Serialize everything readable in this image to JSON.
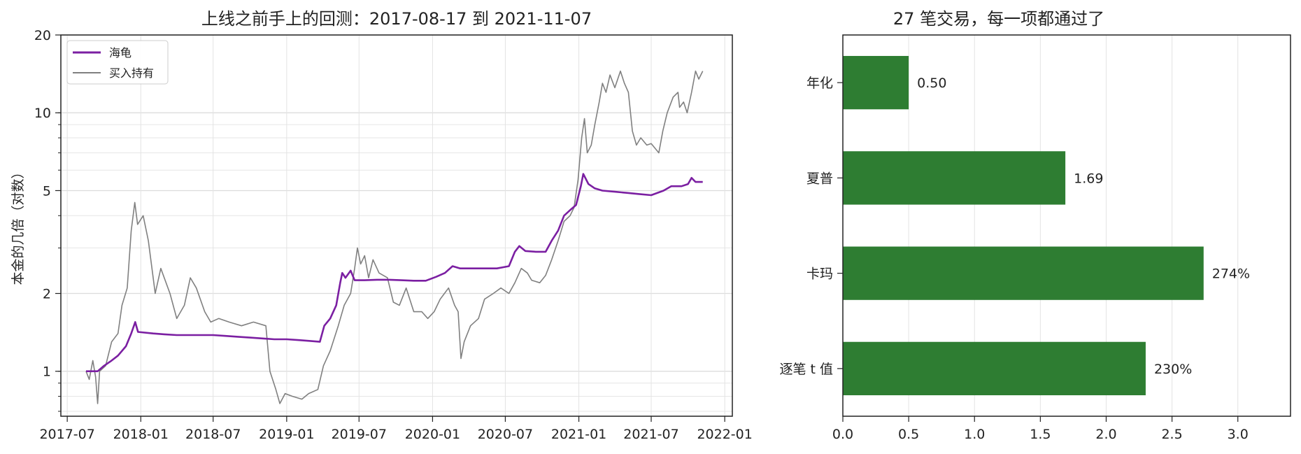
{
  "charts": [
    {
      "chart_data": {
        "type": "line",
        "title": "上线之前手上的回测：2017-08-17 到 2021-11-07",
        "xlabel": "",
        "ylabel": "本金的几倍（对数）",
        "yscale": "log",
        "ylim": [
          0.67,
          20
        ],
        "y_ticks": [
          1,
          2,
          5,
          10,
          20
        ],
        "xlim": [
          "2017-06-15",
          "2022-01-20"
        ],
        "x_ticks": [
          "2017-07",
          "2018-01",
          "2018-07",
          "2019-01",
          "2019-07",
          "2020-01",
          "2020-07",
          "2021-01",
          "2021-07",
          "2022-01"
        ],
        "grid": true,
        "legend_position": "upper left",
        "series": [
          {
            "name": "海龟",
            "color": "#7b1fa2",
            "points": [
              [
                "2017-08-17",
                1.0
              ],
              [
                "2017-09-15",
                1.0
              ],
              [
                "2017-10-01",
                1.05
              ],
              [
                "2017-10-20",
                1.1
              ],
              [
                "2017-11-05",
                1.15
              ],
              [
                "2017-11-25",
                1.25
              ],
              [
                "2017-12-08",
                1.4
              ],
              [
                "2017-12-18",
                1.55
              ],
              [
                "2017-12-25",
                1.42
              ],
              [
                "2018-02-01",
                1.4
              ],
              [
                "2018-03-01",
                1.39
              ],
              [
                "2018-04-01",
                1.38
              ],
              [
                "2018-05-01",
                1.38
              ],
              [
                "2018-06-01",
                1.38
              ],
              [
                "2018-07-01",
                1.38
              ],
              [
                "2018-08-01",
                1.37
              ],
              [
                "2018-09-01",
                1.36
              ],
              [
                "2018-10-01",
                1.35
              ],
              [
                "2018-11-01",
                1.34
              ],
              [
                "2018-12-01",
                1.33
              ],
              [
                "2019-01-01",
                1.33
              ],
              [
                "2019-02-01",
                1.32
              ],
              [
                "2019-03-01",
                1.31
              ],
              [
                "2019-03-25",
                1.3
              ],
              [
                "2019-04-05",
                1.5
              ],
              [
                "2019-04-20",
                1.6
              ],
              [
                "2019-05-05",
                1.8
              ],
              [
                "2019-05-15",
                2.2
              ],
              [
                "2019-05-20",
                2.4
              ],
              [
                "2019-05-28",
                2.3
              ],
              [
                "2019-06-10",
                2.45
              ],
              [
                "2019-06-20",
                2.25
              ],
              [
                "2019-07-15",
                2.25
              ],
              [
                "2019-08-15",
                2.26
              ],
              [
                "2019-09-15",
                2.26
              ],
              [
                "2019-10-15",
                2.25
              ],
              [
                "2019-11-15",
                2.24
              ],
              [
                "2019-12-15",
                2.24
              ],
              [
                "2020-01-10",
                2.32
              ],
              [
                "2020-02-01",
                2.4
              ],
              [
                "2020-02-20",
                2.55
              ],
              [
                "2020-03-10",
                2.5
              ],
              [
                "2020-04-15",
                2.5
              ],
              [
                "2020-05-15",
                2.5
              ],
              [
                "2020-06-10",
                2.5
              ],
              [
                "2020-07-10",
                2.55
              ],
              [
                "2020-07-25",
                2.9
              ],
              [
                "2020-08-05",
                3.05
              ],
              [
                "2020-08-20",
                2.92
              ],
              [
                "2020-09-15",
                2.9
              ],
              [
                "2020-10-10",
                2.9
              ],
              [
                "2020-10-25",
                3.2
              ],
              [
                "2020-11-10",
                3.5
              ],
              [
                "2020-11-25",
                4.0
              ],
              [
                "2020-12-10",
                4.2
              ],
              [
                "2020-12-25",
                4.4
              ],
              [
                "2021-01-06",
                5.2
              ],
              [
                "2021-01-12",
                5.8
              ],
              [
                "2021-01-25",
                5.3
              ],
              [
                "2021-02-10",
                5.1
              ],
              [
                "2021-03-01",
                5.0
              ],
              [
                "2021-04-01",
                4.95
              ],
              [
                "2021-05-01",
                4.9
              ],
              [
                "2021-06-01",
                4.85
              ],
              [
                "2021-07-01",
                4.8
              ],
              [
                "2021-08-01",
                5.0
              ],
              [
                "2021-08-20",
                5.2
              ],
              [
                "2021-09-15",
                5.2
              ],
              [
                "2021-10-01",
                5.3
              ],
              [
                "2021-10-10",
                5.6
              ],
              [
                "2021-10-20",
                5.4
              ],
              [
                "2021-11-07",
                5.4
              ]
            ]
          },
          {
            "name": "买入持有",
            "color": "#808080",
            "points": [
              [
                "2017-08-17",
                1.0
              ],
              [
                "2017-08-25",
                0.93
              ],
              [
                "2017-09-03",
                1.1
              ],
              [
                "2017-09-10",
                0.95
              ],
              [
                "2017-09-15",
                0.75
              ],
              [
                "2017-09-20",
                1.0
              ],
              [
                "2017-10-05",
                1.05
              ],
              [
                "2017-10-20",
                1.3
              ],
              [
                "2017-11-05",
                1.4
              ],
              [
                "2017-11-15",
                1.8
              ],
              [
                "2017-11-28",
                2.1
              ],
              [
                "2017-12-08",
                3.5
              ],
              [
                "2017-12-17",
                4.5
              ],
              [
                "2017-12-24",
                3.7
              ],
              [
                "2018-01-07",
                4.0
              ],
              [
                "2018-01-20",
                3.2
              ],
              [
                "2018-02-06",
                2.0
              ],
              [
                "2018-02-20",
                2.5
              ],
              [
                "2018-03-15",
                2.0
              ],
              [
                "2018-04-01",
                1.6
              ],
              [
                "2018-04-20",
                1.8
              ],
              [
                "2018-05-05",
                2.3
              ],
              [
                "2018-05-20",
                2.1
              ],
              [
                "2018-06-10",
                1.7
              ],
              [
                "2018-06-25",
                1.55
              ],
              [
                "2018-07-15",
                1.6
              ],
              [
                "2018-08-10",
                1.55
              ],
              [
                "2018-09-10",
                1.5
              ],
              [
                "2018-10-10",
                1.55
              ],
              [
                "2018-11-10",
                1.5
              ],
              [
                "2018-11-20",
                1.0
              ],
              [
                "2018-12-05",
                0.85
              ],
              [
                "2018-12-15",
                0.75
              ],
              [
                "2018-12-28",
                0.82
              ],
              [
                "2019-01-15",
                0.8
              ],
              [
                "2019-02-08",
                0.78
              ],
              [
                "2019-02-25",
                0.82
              ],
              [
                "2019-03-20",
                0.85
              ],
              [
                "2019-04-03",
                1.05
              ],
              [
                "2019-04-20",
                1.2
              ],
              [
                "2019-05-10",
                1.5
              ],
              [
                "2019-05-25",
                1.8
              ],
              [
                "2019-06-10",
                2.0
              ],
              [
                "2019-06-20",
                2.5
              ],
              [
                "2019-06-27",
                3.0
              ],
              [
                "2019-07-05",
                2.6
              ],
              [
                "2019-07-15",
                2.8
              ],
              [
                "2019-07-25",
                2.3
              ],
              [
                "2019-08-05",
                2.7
              ],
              [
                "2019-08-20",
                2.4
              ],
              [
                "2019-09-10",
                2.3
              ],
              [
                "2019-09-25",
                1.85
              ],
              [
                "2019-10-10",
                1.8
              ],
              [
                "2019-10-27",
                2.1
              ],
              [
                "2019-11-15",
                1.7
              ],
              [
                "2019-12-05",
                1.7
              ],
              [
                "2019-12-20",
                1.6
              ],
              [
                "2020-01-05",
                1.7
              ],
              [
                "2020-01-20",
                1.9
              ],
              [
                "2020-02-10",
                2.1
              ],
              [
                "2020-02-25",
                1.8
              ],
              [
                "2020-03-05",
                1.7
              ],
              [
                "2020-03-12",
                1.12
              ],
              [
                "2020-03-20",
                1.3
              ],
              [
                "2020-04-05",
                1.5
              ],
              [
                "2020-04-25",
                1.6
              ],
              [
                "2020-05-10",
                1.9
              ],
              [
                "2020-06-01",
                2.0
              ],
              [
                "2020-06-20",
                2.1
              ],
              [
                "2020-07-10",
                2.0
              ],
              [
                "2020-07-25",
                2.2
              ],
              [
                "2020-08-10",
                2.5
              ],
              [
                "2020-08-25",
                2.4
              ],
              [
                "2020-09-05",
                2.25
              ],
              [
                "2020-09-25",
                2.2
              ],
              [
                "2020-10-10",
                2.35
              ],
              [
                "2020-10-25",
                2.7
              ],
              [
                "2020-11-10",
                3.2
              ],
              [
                "2020-11-25",
                3.8
              ],
              [
                "2020-12-10",
                4.0
              ],
              [
                "2020-12-20",
                4.3
              ],
              [
                "2020-12-30",
                5.5
              ],
              [
                "2021-01-08",
                8.0
              ],
              [
                "2021-01-15",
                9.5
              ],
              [
                "2021-01-22",
                7.0
              ],
              [
                "2021-02-01",
                7.5
              ],
              [
                "2021-02-10",
                9.0
              ],
              [
                "2021-02-21",
                11.0
              ],
              [
                "2021-03-01",
                13.0
              ],
              [
                "2021-03-10",
                12.0
              ],
              [
                "2021-03-20",
                14.0
              ],
              [
                "2021-04-01",
                12.5
              ],
              [
                "2021-04-15",
                14.5
              ],
              [
                "2021-04-25",
                13.0
              ],
              [
                "2021-05-05",
                12.0
              ],
              [
                "2021-05-15",
                8.5
              ],
              [
                "2021-05-25",
                7.5
              ],
              [
                "2021-06-05",
                8.0
              ],
              [
                "2021-06-20",
                7.5
              ],
              [
                "2021-07-01",
                7.6
              ],
              [
                "2021-07-20",
                7.0
              ],
              [
                "2021-07-30",
                8.5
              ],
              [
                "2021-08-10",
                10.0
              ],
              [
                "2021-08-25",
                11.5
              ],
              [
                "2021-09-06",
                12.0
              ],
              [
                "2021-09-10",
                10.5
              ],
              [
                "2021-09-20",
                11.0
              ],
              [
                "2021-09-29",
                10.0
              ],
              [
                "2021-10-10",
                12.0
              ],
              [
                "2021-10-20",
                14.5
              ],
              [
                "2021-10-28",
                13.5
              ],
              [
                "2021-11-07",
                14.5
              ]
            ]
          }
        ]
      }
    },
    {
      "chart_data": {
        "type": "bar",
        "orientation": "horizontal",
        "title": "27 笔交易，每一项都通过了",
        "xlabel": "",
        "ylabel": "",
        "xlim": [
          0,
          3.4
        ],
        "x_ticks": [
          "0.0",
          "0.5",
          "1.0",
          "1.5",
          "2.0",
          "2.5",
          "3.0"
        ],
        "grid": true,
        "bar_color": "#2e7d32",
        "categories": [
          "年化",
          "夏普",
          "卡玛",
          "逐笔 t 值"
        ],
        "values": [
          0.5,
          1.69,
          2.74,
          2.3
        ],
        "labels": [
          "0.50",
          "1.69",
          "274%",
          "230%"
        ]
      }
    }
  ]
}
